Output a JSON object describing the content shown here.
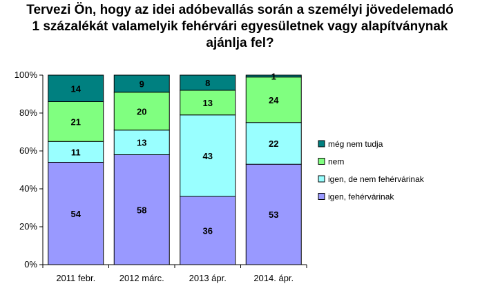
{
  "title_lines": [
    "Tervezi Ön, hogy az idei adóbevallás során a személyi jövedelemadó",
    "1 százalékát valamelyik fehérvári egyesületnek vagy alapítványnak",
    "ajánlja fel?"
  ],
  "chart_data": {
    "type": "bar",
    "stacked": true,
    "title": "Tervezi Ön, hogy az idei adóbevallás során a személyi jövedelemadó 1 százalékát valamelyik fehérvári egyesületnek vagy alapítványnak ajánlja fel?",
    "categories": [
      "2011 febr.",
      "2012 márc.",
      "2013 ápr.",
      "2014. ápr."
    ],
    "series": [
      {
        "name": "igen, fehérvárinak",
        "color": "#9999ff",
        "values": [
          54,
          58,
          36,
          53
        ]
      },
      {
        "name": "igen, de nem fehérvárinak",
        "color": "#99ffff",
        "values": [
          11,
          13,
          43,
          22
        ]
      },
      {
        "name": "nem",
        "color": "#80ff80",
        "values": [
          21,
          20,
          13,
          24
        ]
      },
      {
        "name": "még nem tudja",
        "color": "#008080",
        "values": [
          14,
          9,
          8,
          1
        ]
      }
    ],
    "yticks": [
      "0%",
      "20%",
      "40%",
      "60%",
      "80%",
      "100%"
    ],
    "ylim": [
      0,
      100
    ],
    "grid": false,
    "legend_position": "right"
  }
}
